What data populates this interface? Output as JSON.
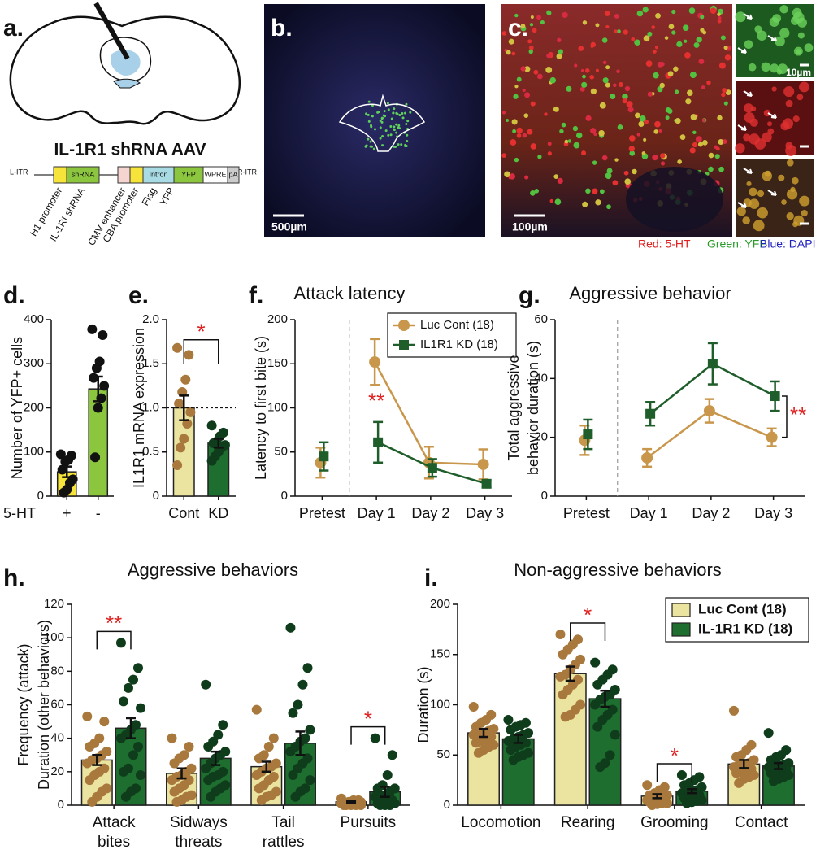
{
  "panels": {
    "a": {
      "label": "a.",
      "title": "IL-1R1 shRNA AAV",
      "construct": [
        "L-ITR",
        "shRNA",
        "Intron",
        "YFP",
        "WPRE",
        "pA",
        "R-ITR"
      ],
      "elements": [
        "H1 promoter",
        "IL-1RI shRNA",
        "CMV enhancer",
        "CBA promoter",
        "Flag",
        "YFP"
      ]
    },
    "b": {
      "label": "b.",
      "scale_bar": "500µm"
    },
    "c": {
      "label": "c.",
      "scale_bar": "100µm",
      "inset_scale_bar": "10µm",
      "stain": [
        "Red: 5-HT",
        "Green: YFP",
        "Blue: DAPI"
      ]
    }
  },
  "chart_data": [
    {
      "type": "bar",
      "panel_label": "d.",
      "ylabel": "Number of YFP+ cells",
      "xlabel": "5-HT",
      "categories": [
        "+",
        "-"
      ],
      "values": [
        55,
        243
      ],
      "errors": [
        12,
        28
      ],
      "colors": [
        "#f7e43a",
        "#8cc63e"
      ],
      "point_colors": [
        "#111111",
        "#111111"
      ],
      "edge_color": "#222222",
      "points": [
        [
          95,
          92,
          82,
          78,
          60,
          38,
          30,
          15,
          8
        ],
        [
          378,
          365,
          305,
          290,
          268,
          250,
          222,
          200,
          88
        ]
      ],
      "ylim": [
        0,
        400
      ],
      "yticks": [
        0,
        100,
        200,
        300,
        400
      ]
    },
    {
      "type": "bar",
      "panel_label": "e.",
      "ylabel": "IL1R1 mRNA expression",
      "categories": [
        "Cont",
        "KD"
      ],
      "values": [
        1,
        0.6
      ],
      "errors": [
        0.14,
        0.05
      ],
      "colors": [
        "#ebe3a0",
        "#1e6e30"
      ],
      "point_colors": [
        "#a8783c",
        "#0f3d1c"
      ],
      "edge_color": "#222222",
      "points": [
        [
          1.68,
          1.6,
          1.32,
          1.18,
          1.05,
          0.95,
          0.82,
          0.65,
          0.55,
          0.35
        ],
        [
          0.8,
          0.72,
          0.68,
          0.62,
          0.6,
          0.58,
          0.55,
          0.5,
          0.45,
          0.4
        ]
      ],
      "hline": 1,
      "significance": "*",
      "ylim": [
        0,
        2
      ],
      "yticks": [
        0,
        0.5,
        {
          "value": 1,
          "label": "1.0"
        },
        1.5,
        {
          "value": 2,
          "label": "2.0"
        }
      ]
    },
    {
      "type": "line",
      "panel_label": "f.",
      "title": "Attack latency",
      "ylabel": "Latency to first bite (s)",
      "categories": [
        "Pretest",
        "Day 1",
        "Day 2",
        "Day 3"
      ],
      "separator": true,
      "legend": "upper right",
      "series": [
        {
          "name": "Luc Cont (18)",
          "color": "#c9974c",
          "marker": "circle",
          "values": [
            38,
            152,
            38,
            36
          ],
          "errors": [
            17,
            26,
            18,
            17
          ]
        },
        {
          "name": "IL1R1 KD (18)",
          "color": "#1f5e2a",
          "marker": "square",
          "values": [
            45,
            61,
            32,
            14
          ],
          "errors": [
            16,
            23,
            10,
            4
          ]
        }
      ],
      "significance": [
        null,
        "**",
        null,
        null
      ],
      "ylim": [
        0,
        200
      ],
      "yticks": [
        0,
        50,
        100,
        150,
        200
      ]
    },
    {
      "type": "line",
      "panel_label": "g.",
      "title": "Aggressive behavior",
      "ylabel": [
        "Total aggressive",
        "behavior duration (s)"
      ],
      "categories": [
        "Pretest",
        "Day 1",
        "Day 2",
        "Day 3"
      ],
      "separator": true,
      "series": [
        {
          "color": "#c9974c",
          "marker": "circle",
          "values": [
            19,
            13,
            29,
            20
          ],
          "errors": [
            5,
            3,
            4,
            3
          ]
        },
        {
          "color": "#1f5e2a",
          "marker": "square",
          "values": [
            21,
            28,
            45,
            34
          ],
          "errors": [
            5,
            4,
            7,
            5
          ]
        }
      ],
      "significance": "**",
      "ylim": [
        0,
        60
      ],
      "yticks": [
        0,
        20,
        40,
        60
      ]
    },
    {
      "type": "bar",
      "panel_label": "h.",
      "title": "Aggressive behaviors",
      "ylabel": [
        "Frequency (attack)",
        "Duration (other behaviors)"
      ],
      "categories": [
        [
          "Attack",
          "bites"
        ],
        [
          "Sidways",
          "threats"
        ],
        [
          "Tail",
          "rattles"
        ],
        [
          "Pursuits"
        ]
      ],
      "edge_color": "#222222",
      "series": [
        {
          "color": "#ebe3a0",
          "point_color": "#a8783c",
          "values": [
            27,
            19,
            23,
            2
          ],
          "errors": [
            3,
            3,
            3,
            0.5
          ],
          "points": [
            [
              53,
              50,
              40,
              37,
              35,
              32,
              30,
              28,
              27,
              25,
              22,
              20,
              18,
              15,
              10,
              8,
              5,
              2
            ],
            [
              40,
              35,
              30,
              28,
              25,
              22,
              20,
              18,
              17,
              15,
              15,
              12,
              10,
              8,
              6,
              5,
              3,
              2
            ],
            [
              57,
              40,
              35,
              30,
              28,
              25,
              23,
              22,
              20,
              18,
              17,
              15,
              12,
              10,
              8,
              6,
              5,
              3
            ],
            [
              4,
              3,
              3,
              2,
              2,
              2,
              2,
              1,
              1,
              1,
              1,
              1,
              1,
              0,
              0,
              0,
              0,
              0
            ]
          ]
        },
        {
          "color": "#1e6e30",
          "point_color": "#0f3d1c",
          "values": [
            46,
            28,
            37,
            8
          ],
          "errors": [
            6,
            4,
            7,
            3
          ],
          "points": [
            [
              97,
              82,
              75,
              70,
              62,
              58,
              48,
              45,
              42,
              40,
              35,
              30,
              22,
              20,
              18,
              10,
              8,
              5
            ],
            [
              72,
              48,
              42,
              38,
              35,
              32,
              30,
              28,
              25,
              22,
              20,
              18,
              17,
              15,
              12,
              10,
              8,
              5
            ],
            [
              106,
              82,
              72,
              60,
              55,
              45,
              40,
              38,
              35,
              32,
              28,
              25,
              22,
              18,
              15,
              10,
              8,
              5
            ],
            [
              40,
              30,
              18,
              12,
              10,
              10,
              8,
              6,
              5,
              5,
              3,
              2,
              2,
              1,
              1,
              0,
              0,
              0
            ]
          ]
        }
      ],
      "significance": [
        "**",
        null,
        null,
        "*"
      ],
      "ylim": [
        0,
        120
      ],
      "yticks": [
        0,
        20,
        40,
        60,
        80,
        100,
        120
      ]
    },
    {
      "type": "bar",
      "panel_label": "i.",
      "title": "Non-aggressive behaviors",
      "ylabel": "Duration (s)",
      "categories": [
        "Locomotion",
        "Rearing",
        "Grooming",
        "Contact"
      ],
      "edge_color": "#222222",
      "legend": "upper right",
      "series": [
        {
          "name": "Luc Cont (18)",
          "color": "#ebe3a0",
          "point_color": "#a8783c",
          "values": [
            72,
            131,
            9,
            41
          ],
          "errors": [
            4,
            7,
            2,
            4
          ],
          "points": [
            [
              98,
              90,
              85,
              82,
              78,
              76,
              74,
              72,
              70,
              70,
              68,
              66,
              64,
              62,
              60,
              58,
              55,
              52
            ],
            [
              170,
              165,
              160,
              155,
              150,
              145,
              140,
              135,
              130,
              128,
              125,
              120,
              115,
              110,
              100,
              95,
              90,
              88
            ],
            [
              20,
              18,
              15,
              12,
              10,
              10,
              8,
              8,
              6,
              5,
              5,
              5,
              4,
              3,
              2,
              2,
              1,
              0
            ],
            [
              94,
              60,
              55,
              50,
              48,
              45,
              42,
              40,
              40,
              38,
              36,
              35,
              34,
              32,
              30,
              28,
              26,
              22
            ]
          ]
        },
        {
          "name": "IL-1R1 KD (18)",
          "color": "#1e6e30",
          "point_color": "#0f3d1c",
          "values": [
            66,
            106,
            14,
            39
          ],
          "errors": [
            4,
            8,
            2,
            3
          ],
          "points": [
            [
              85,
              82,
              80,
              78,
              75,
              72,
              70,
              68,
              66,
              64,
              62,
              60,
              58,
              55,
              52,
              50,
              48,
              45
            ],
            [
              142,
              135,
              130,
              125,
              120,
              115,
              110,
              108,
              105,
              100,
              95,
              90,
              85,
              78,
              70,
              50,
              42,
              38
            ],
            [
              30,
              28,
              25,
              22,
              20,
              18,
              15,
              14,
              13,
              12,
              10,
              10,
              8,
              7,
              5,
              4,
              3,
              2
            ],
            [
              72,
              55,
              50,
              48,
              45,
              42,
              40,
              40,
              38,
              38,
              36,
              35,
              34,
              32,
              30,
              28,
              26,
              24
            ]
          ]
        }
      ],
      "significance": [
        null,
        "*",
        "*",
        null
      ],
      "ylim": [
        0,
        200
      ],
      "yticks": [
        0,
        50,
        100,
        150,
        200
      ]
    }
  ]
}
